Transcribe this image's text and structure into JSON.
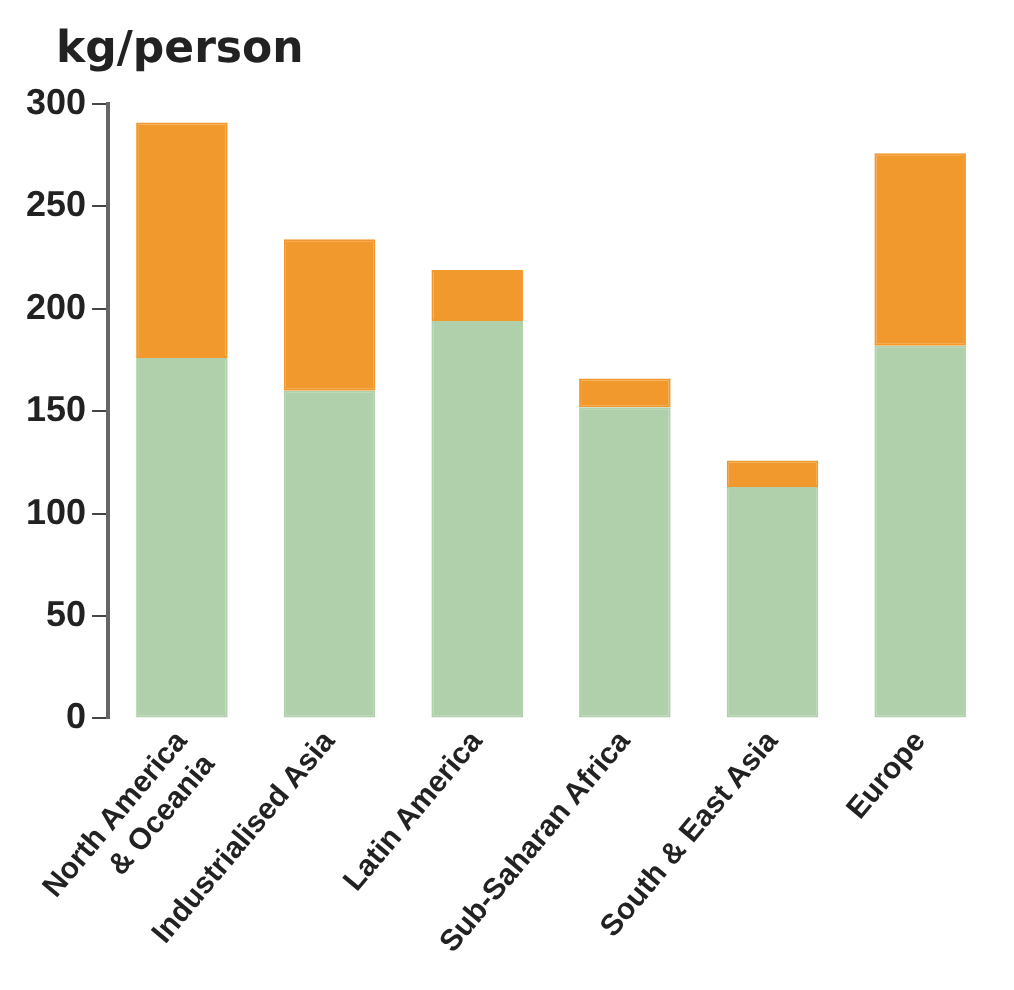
{
  "chart_data": {
    "type": "bar",
    "ylabel": "kg/person",
    "stacked": true,
    "categories": [
      "North America & Oceania",
      "Industrialised Asia",
      "Latin America",
      "Sub-Saharan Africa",
      "South & East Asia",
      "Europe"
    ],
    "series": [
      {
        "color": "#afd0aa",
        "values": [
          176,
          160,
          194,
          152,
          113,
          182
        ]
      },
      {
        "color": "#f2992e",
        "values": [
          115,
          74,
          25,
          14,
          13,
          94
        ]
      }
    ],
    "ylim": [
      0,
      300
    ],
    "yticks": [
      0,
      50,
      100,
      150,
      200,
      250,
      300
    ],
    "grid": false,
    "legend": false
  }
}
